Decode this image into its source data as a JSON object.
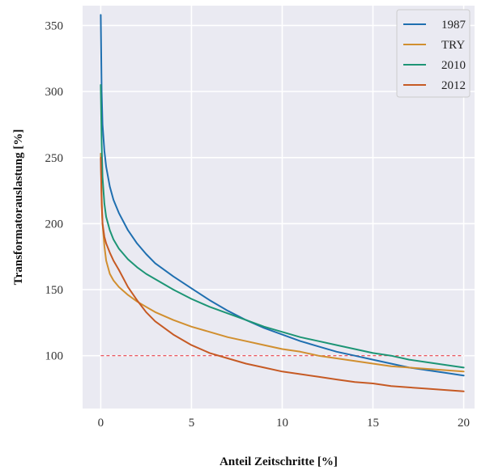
{
  "chart_data": {
    "type": "line",
    "title": "",
    "xlabel": "Anteil Zeitschritte [%]",
    "ylabel": "Transformatorauslastung [%]",
    "xlim": [
      -1,
      20.6
    ],
    "ylim": [
      60,
      365
    ],
    "xticks": [
      0,
      5,
      10,
      15,
      20
    ],
    "yticks": [
      100,
      150,
      200,
      250,
      300,
      350
    ],
    "grid": true,
    "legend_position": "top-right",
    "colors": {
      "background": "#eaeaf2",
      "grid": "#ffffff",
      "reference_line": "#e8414a"
    },
    "series": [
      {
        "name": "1987",
        "color": "#1f6fb0",
        "x": [
          0,
          0.05,
          0.1,
          0.2,
          0.3,
          0.5,
          0.7,
          1,
          1.5,
          2,
          2.5,
          3,
          4,
          5,
          6,
          7,
          8,
          9,
          10,
          11,
          12,
          13,
          14,
          15,
          16,
          17,
          18,
          19,
          20
        ],
        "y": [
          358,
          300,
          275,
          255,
          243,
          228,
          218,
          208,
          195,
          185,
          177,
          170,
          160,
          151,
          142,
          134,
          127,
          121,
          116,
          111,
          107,
          103,
          100,
          97,
          94,
          91,
          89,
          87,
          85
        ]
      },
      {
        "name": "TRY",
        "color": "#d18f2f",
        "x": [
          0,
          0.05,
          0.1,
          0.2,
          0.3,
          0.5,
          0.7,
          1,
          1.5,
          2,
          2.5,
          3,
          4,
          5,
          6,
          7,
          8,
          9,
          10,
          11,
          12,
          13,
          14,
          15,
          16,
          17,
          18,
          19,
          20
        ],
        "y": [
          253,
          220,
          200,
          183,
          172,
          162,
          157,
          152,
          146,
          141,
          137,
          133,
          127,
          122,
          118,
          114,
          111,
          108,
          105,
          103,
          100,
          98,
          96,
          94,
          92,
          91,
          90,
          89,
          88
        ]
      },
      {
        "name": "2010",
        "color": "#1d9575",
        "x": [
          0,
          0.05,
          0.1,
          0.2,
          0.3,
          0.5,
          0.7,
          1,
          1.5,
          2,
          2.5,
          3,
          4,
          5,
          6,
          7,
          8,
          9,
          10,
          11,
          12,
          13,
          14,
          15,
          16,
          17,
          18,
          19,
          20
        ],
        "y": [
          305,
          260,
          235,
          215,
          205,
          195,
          188,
          181,
          173,
          167,
          162,
          158,
          150,
          143,
          137,
          132,
          127,
          122,
          118,
          114,
          111,
          108,
          105,
          102,
          100,
          97,
          95,
          93,
          91
        ]
      },
      {
        "name": "2012",
        "color": "#c65a24",
        "x": [
          0,
          0.05,
          0.1,
          0.2,
          0.3,
          0.5,
          0.7,
          1,
          1.5,
          2,
          2.5,
          3,
          4,
          5,
          6,
          7,
          8,
          9,
          10,
          11,
          12,
          13,
          14,
          15,
          16,
          17,
          18,
          19,
          20
        ],
        "y": [
          250,
          215,
          200,
          190,
          185,
          178,
          172,
          165,
          152,
          142,
          133,
          126,
          116,
          108,
          102,
          98,
          94,
          91,
          88,
          86,
          84,
          82,
          80,
          79,
          77,
          76,
          75,
          74,
          73
        ]
      }
    ],
    "reference_lines": [
      {
        "y": 100,
        "x_range": [
          0,
          20
        ],
        "style": "dashed"
      }
    ]
  }
}
